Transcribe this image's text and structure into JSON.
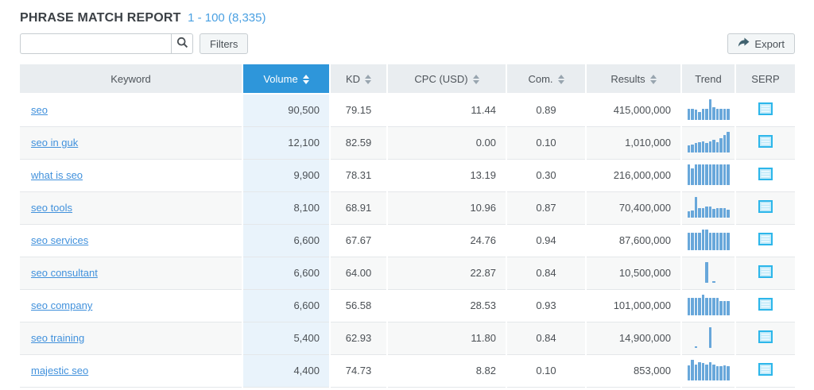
{
  "page": {
    "title": "PHRASE MATCH REPORT",
    "range_label": "1 - 100 (8,335)"
  },
  "toolbar": {
    "search_value": "",
    "search_placeholder": "",
    "filters_label": "Filters",
    "export_label": "Export"
  },
  "table": {
    "columns": [
      {
        "label": "Keyword",
        "sortable": false
      },
      {
        "label": "Volume",
        "sortable": true,
        "active": true
      },
      {
        "label": "KD",
        "sortable": true
      },
      {
        "label": "CPC (USD)",
        "sortable": true
      },
      {
        "label": "Com.",
        "sortable": true
      },
      {
        "label": "Results",
        "sortable": true
      },
      {
        "label": "Trend",
        "sortable": false
      },
      {
        "label": "SERP",
        "sortable": false
      }
    ],
    "rows": [
      {
        "keyword": "seo",
        "volume": "90,500",
        "kd": "79.15",
        "cpc": "11.44",
        "com": "0.89",
        "results": "415,000,000",
        "trend": [
          0.55,
          0.55,
          0.5,
          0.38,
          0.52,
          0.55,
          1.0,
          0.6,
          0.55,
          0.55,
          0.55,
          0.52
        ]
      },
      {
        "keyword": "seo in guk",
        "volume": "12,100",
        "kd": "82.59",
        "cpc": "0.00",
        "com": "0.10",
        "results": "1,010,000",
        "trend": [
          0.33,
          0.38,
          0.45,
          0.5,
          0.55,
          0.48,
          0.55,
          0.62,
          0.5,
          0.68,
          0.85,
          1.0
        ]
      },
      {
        "keyword": "what is seo",
        "volume": "9,900",
        "kd": "78.31",
        "cpc": "13.19",
        "com": "0.30",
        "results": "216,000,000",
        "trend": [
          1.0,
          0.8,
          1.0,
          1.0,
          1.0,
          1.0,
          1.0,
          1.0,
          1.0,
          1.0,
          1.0,
          1.0
        ]
      },
      {
        "keyword": "seo tools",
        "volume": "8,100",
        "kd": "68.91",
        "cpc": "10.96",
        "com": "0.87",
        "results": "70,400,000",
        "trend": [
          0.3,
          0.35,
          1.0,
          0.45,
          0.45,
          0.55,
          0.55,
          0.42,
          0.45,
          0.45,
          0.45,
          0.4
        ]
      },
      {
        "keyword": "seo services",
        "volume": "6,600",
        "kd": "67.67",
        "cpc": "24.76",
        "com": "0.94",
        "results": "87,600,000",
        "trend": [
          0.85,
          0.85,
          0.85,
          0.85,
          1.0,
          1.0,
          0.85,
          0.85,
          0.85,
          0.85,
          0.85,
          0.85
        ]
      },
      {
        "keyword": "seo consultant",
        "volume": "6,600",
        "kd": "64.00",
        "cpc": "22.87",
        "com": "0.84",
        "results": "10,500,000",
        "trend": [
          0,
          0,
          0,
          0,
          0,
          1.0,
          0,
          0.08,
          0,
          0,
          0,
          0
        ]
      },
      {
        "keyword": "seo company",
        "volume": "6,600",
        "kd": "56.58",
        "cpc": "28.53",
        "com": "0.93",
        "results": "101,000,000",
        "trend": [
          0.85,
          0.85,
          0.85,
          0.85,
          1.0,
          0.85,
          0.85,
          0.85,
          0.85,
          0.7,
          0.7,
          0.7
        ]
      },
      {
        "keyword": "seo training",
        "volume": "5,400",
        "kd": "62.93",
        "cpc": "11.80",
        "com": "0.84",
        "results": "14,900,000",
        "trend": [
          0,
          0,
          0.08,
          0,
          0,
          0,
          1.0,
          0,
          0,
          0,
          0,
          0
        ]
      },
      {
        "keyword": "majestic seo",
        "volume": "4,400",
        "kd": "74.73",
        "cpc": "8.82",
        "com": "0.10",
        "results": "853,000",
        "trend": [
          0.72,
          1.0,
          0.75,
          0.9,
          0.85,
          0.75,
          0.9,
          0.78,
          0.7,
          0.7,
          0.72,
          0.7
        ]
      }
    ]
  },
  "icons": {
    "search": "magnifier-icon",
    "export": "share-arrow-icon",
    "serp": "serp-table-icon",
    "sort": "sort-arrows-icon"
  },
  "colors": {
    "accent_blue": "#2e96da",
    "link_blue": "#4191dc",
    "range_blue": "#4aa0e2",
    "trend_bar": "#68a7da",
    "serp_icon": "#2cb6ea",
    "header_bg": "#e9edf0",
    "volume_tint": "#e9f3fb",
    "alt_row": "#f7f8f8"
  }
}
